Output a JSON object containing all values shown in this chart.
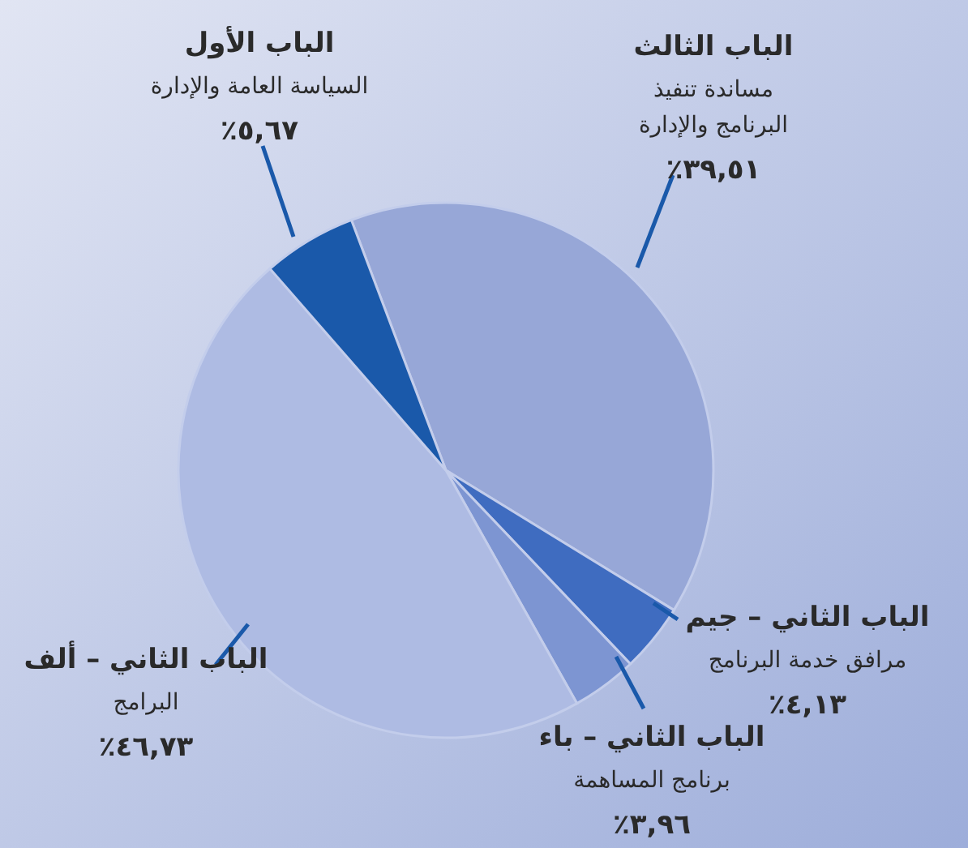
{
  "chart_data": {
    "type": "pie",
    "categories": [
      "الباب الثالث\nمساندة تنفيذ\nالبرنامج والإدارة",
      "الباب الثاني – جيم\nمرافق خدمة البرنامج",
      "الباب الثاني – باء\nبرنامج المساهمة",
      "الباب الثاني – ألف\nالبرامج",
      "الباب الأول\nالسياسة العامة والإدارة"
    ],
    "values": [
      39.51,
      4.13,
      3.96,
      46.73,
      5.67
    ],
    "colors": [
      "#97a7d7",
      "#3f6cc0",
      "#7d95d2",
      "#aebbe3",
      "#1a59aa"
    ],
    "value_labels": [
      "٣٩,٥١٪",
      "٤,١٣٪",
      "٣,٩٦٪",
      "٤٦,٧٣٪",
      "٥,٦٧٪"
    ]
  }
}
